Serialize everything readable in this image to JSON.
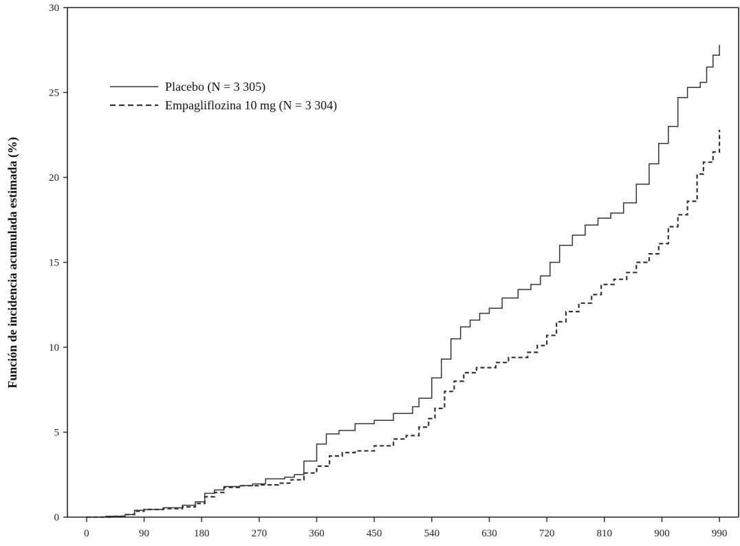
{
  "chart_data": {
    "type": "line",
    "title": "",
    "xlabel": "",
    "ylabel": "Función de incidencia acumulada estimada (%)",
    "xlim": [
      -30,
      1020
    ],
    "ylim": [
      0,
      30
    ],
    "x_ticks": [
      0,
      90,
      180,
      270,
      360,
      450,
      540,
      630,
      720,
      810,
      900,
      990
    ],
    "y_ticks": [
      0,
      5,
      10,
      15,
      20,
      25,
      30
    ],
    "grid": false,
    "legend_position": "top-left",
    "series": [
      {
        "name": "Placebo (N = 3 305)",
        "style": "solid",
        "color": "#333333",
        "points": [
          [
            0,
            0
          ],
          [
            30,
            0.05
          ],
          [
            60,
            0.15
          ],
          [
            75,
            0.4
          ],
          [
            90,
            0.45
          ],
          [
            120,
            0.55
          ],
          [
            150,
            0.7
          ],
          [
            170,
            0.9
          ],
          [
            185,
            1.4
          ],
          [
            200,
            1.6
          ],
          [
            215,
            1.8
          ],
          [
            240,
            1.85
          ],
          [
            260,
            1.95
          ],
          [
            280,
            2.25
          ],
          [
            310,
            2.35
          ],
          [
            325,
            2.5
          ],
          [
            340,
            3.3
          ],
          [
            360,
            4.3
          ],
          [
            375,
            4.9
          ],
          [
            395,
            5.1
          ],
          [
            420,
            5.5
          ],
          [
            450,
            5.7
          ],
          [
            480,
            6.1
          ],
          [
            510,
            6.5
          ],
          [
            520,
            7.0
          ],
          [
            540,
            8.2
          ],
          [
            555,
            9.3
          ],
          [
            570,
            10.5
          ],
          [
            585,
            11.2
          ],
          [
            600,
            11.6
          ],
          [
            615,
            12.0
          ],
          [
            630,
            12.3
          ],
          [
            650,
            12.9
          ],
          [
            675,
            13.4
          ],
          [
            695,
            13.7
          ],
          [
            710,
            14.2
          ],
          [
            725,
            15.0
          ],
          [
            740,
            16.0
          ],
          [
            760,
            16.6
          ],
          [
            780,
            17.2
          ],
          [
            800,
            17.6
          ],
          [
            820,
            17.9
          ],
          [
            840,
            18.5
          ],
          [
            860,
            19.6
          ],
          [
            880,
            20.8
          ],
          [
            895,
            22.0
          ],
          [
            910,
            23.0
          ],
          [
            925,
            24.7
          ],
          [
            940,
            25.3
          ],
          [
            960,
            25.6
          ],
          [
            970,
            26.5
          ],
          [
            980,
            27.2
          ],
          [
            990,
            27.8
          ]
        ]
      },
      {
        "name": "Empagliflozina 10 mg (N = 3 304)",
        "style": "dashed",
        "color": "#333333",
        "points": [
          [
            0,
            0
          ],
          [
            40,
            0.05
          ],
          [
            60,
            0.15
          ],
          [
            75,
            0.35
          ],
          [
            90,
            0.45
          ],
          [
            120,
            0.5
          ],
          [
            150,
            0.6
          ],
          [
            170,
            0.8
          ],
          [
            185,
            1.2
          ],
          [
            200,
            1.45
          ],
          [
            215,
            1.75
          ],
          [
            240,
            1.85
          ],
          [
            270,
            1.9
          ],
          [
            300,
            2.0
          ],
          [
            320,
            2.2
          ],
          [
            340,
            2.6
          ],
          [
            360,
            3.0
          ],
          [
            380,
            3.6
          ],
          [
            400,
            3.8
          ],
          [
            420,
            3.9
          ],
          [
            450,
            4.2
          ],
          [
            480,
            4.6
          ],
          [
            500,
            4.8
          ],
          [
            520,
            5.3
          ],
          [
            535,
            5.8
          ],
          [
            545,
            6.4
          ],
          [
            560,
            7.4
          ],
          [
            575,
            8.0
          ],
          [
            590,
            8.5
          ],
          [
            610,
            8.8
          ],
          [
            640,
            9.1
          ],
          [
            660,
            9.4
          ],
          [
            690,
            9.7
          ],
          [
            705,
            10.1
          ],
          [
            720,
            10.7
          ],
          [
            735,
            11.5
          ],
          [
            750,
            12.1
          ],
          [
            770,
            12.6
          ],
          [
            790,
            13.1
          ],
          [
            805,
            13.7
          ],
          [
            825,
            14.0
          ],
          [
            845,
            14.4
          ],
          [
            860,
            15.0
          ],
          [
            880,
            15.5
          ],
          [
            895,
            16.1
          ],
          [
            910,
            17.1
          ],
          [
            925,
            17.8
          ],
          [
            940,
            18.6
          ],
          [
            955,
            20.2
          ],
          [
            965,
            20.9
          ],
          [
            980,
            21.5
          ],
          [
            990,
            22.8
          ]
        ]
      }
    ]
  }
}
